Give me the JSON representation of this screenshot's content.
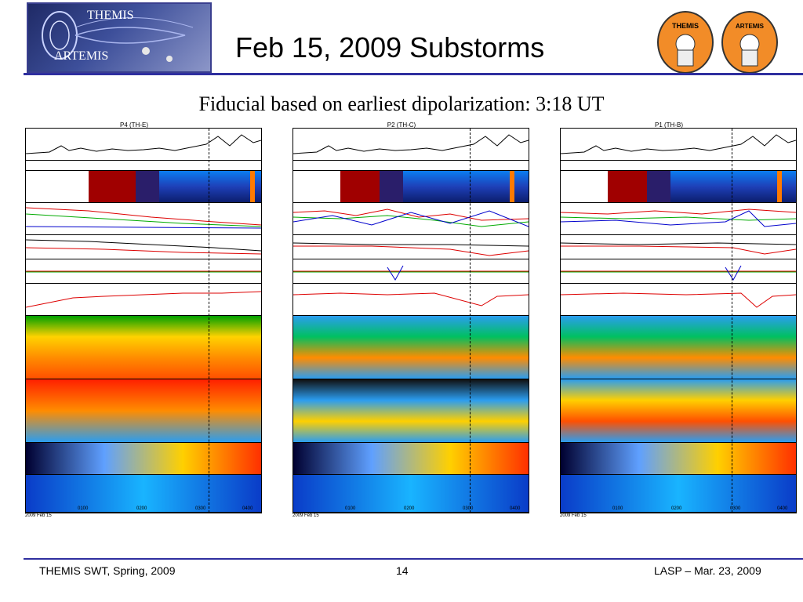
{
  "header": {
    "logo_top_text": "THEMIS",
    "logo_bottom_text": "ARTEMIS",
    "title": "Feb 15, 2009 Substorms",
    "badge_left": "THEMIS",
    "badge_right": "ARTEMIS"
  },
  "subtitle": "Fiducial based on earliest dipolarization: 3:18 UT",
  "panels": [
    {
      "title": "P4 (TH-E)"
    },
    {
      "title": "P2 (TH-C)"
    },
    {
      "title": "P1 (TH-B)"
    }
  ],
  "time_axis": {
    "ticks": [
      "0100",
      "0200",
      "0300",
      "0400"
    ],
    "date": "2009 Feb 15"
  },
  "footer": {
    "left": "THEMIS SWT, Spring, 2009",
    "page": "14",
    "right": "LASP – Mar. 23, 2009"
  },
  "colors": {
    "accent": "#2f2f9f",
    "badge": "#f28c28"
  }
}
